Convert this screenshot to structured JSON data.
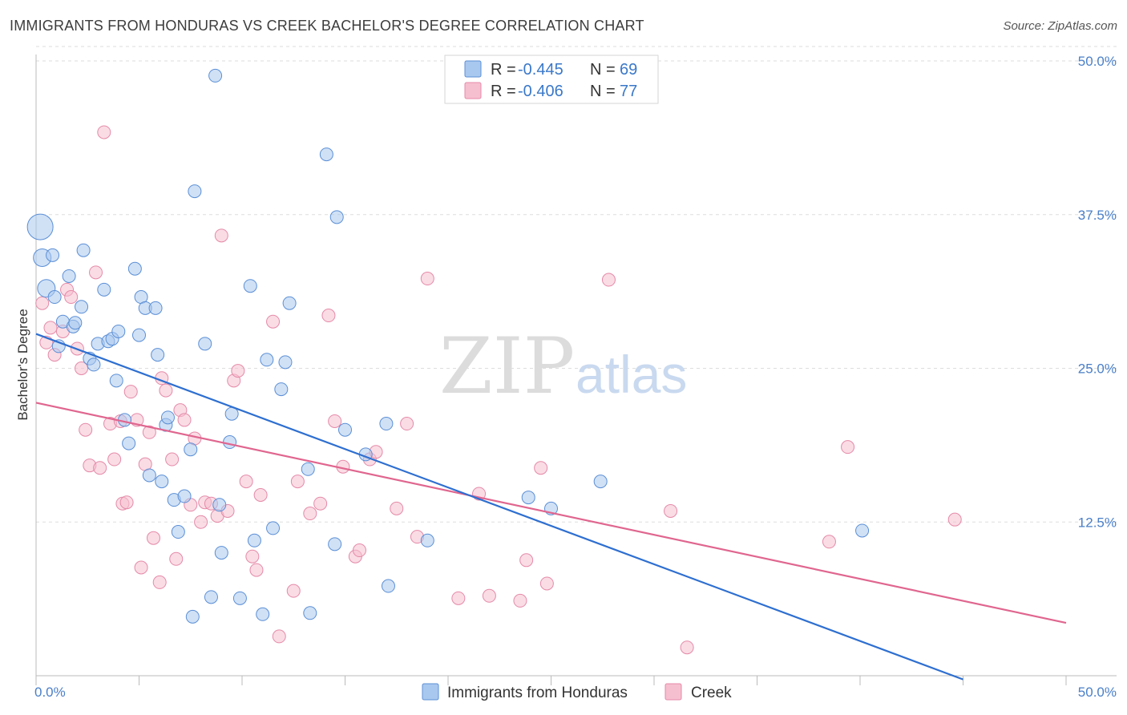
{
  "header": {
    "title": "IMMIGRANTS FROM HONDURAS VS CREEK BACHELOR'S DEGREE CORRELATION CHART",
    "source": "Source: ZipAtlas.com"
  },
  "watermark": {
    "zip": "ZIP",
    "atlas": "atlas"
  },
  "colors": {
    "blue_fill": "#a9c8ef",
    "blue_stroke": "#5b8fd6",
    "blue_line": "#2e6fd0",
    "pink_fill": "#f6bfd0",
    "pink_stroke": "#e58aa8",
    "pink_line": "#e0668f",
    "tick_text": "#4a7fc8",
    "grid": "#dddddd"
  },
  "legend": {
    "rows": [
      {
        "r_label": "R = ",
        "r_value": "-0.445",
        "n_label": "N = ",
        "n_value": "69"
      },
      {
        "r_label": "R = ",
        "r_value": "-0.406",
        "n_label": "N = ",
        "n_value": "77"
      }
    ]
  },
  "chart_data": {
    "type": "scatter",
    "title": "IMMIGRANTS FROM HONDURAS VS CREEK BACHELOR'S DEGREE CORRELATION CHART",
    "xlabel": "",
    "ylabel": "Bachelor's Degree",
    "xlim": [
      0,
      50
    ],
    "ylim": [
      0,
      50
    ],
    "x_tick_labels": [
      "0.0%",
      "50.0%"
    ],
    "y_ticks": [
      12.5,
      25.0,
      37.5,
      50.0
    ],
    "y_tick_labels": [
      "12.5%",
      "25.0%",
      "37.5%",
      "50.0%"
    ],
    "grid": "horizontal dashed",
    "legend_placement": "top-center",
    "series": [
      {
        "name": "Immigrants from Honduras",
        "color": "#a9c8ef",
        "trend": {
          "x": [
            0,
            45
          ],
          "y": [
            27.8,
            -0.3
          ]
        },
        "points": [
          [
            0.2,
            36.5,
            3
          ],
          [
            0.3,
            34.0,
            2
          ],
          [
            0.5,
            31.5,
            2
          ],
          [
            0.8,
            34.2,
            1
          ],
          [
            0.9,
            30.8,
            1
          ],
          [
            1.1,
            26.8,
            1
          ],
          [
            1.3,
            28.8,
            1
          ],
          [
            1.6,
            32.5,
            1
          ],
          [
            1.8,
            28.4,
            1
          ],
          [
            1.9,
            28.7,
            1
          ],
          [
            2.2,
            30.0,
            1
          ],
          [
            2.3,
            34.6,
            1
          ],
          [
            2.6,
            25.8,
            1
          ],
          [
            2.8,
            25.3,
            1
          ],
          [
            3.0,
            27.0,
            1
          ],
          [
            3.3,
            31.4,
            1
          ],
          [
            3.5,
            27.2,
            1
          ],
          [
            3.7,
            27.4,
            1
          ],
          [
            3.9,
            24.0,
            1
          ],
          [
            4.0,
            28.0,
            1
          ],
          [
            4.3,
            20.8,
            1
          ],
          [
            4.5,
            18.9,
            1
          ],
          [
            4.8,
            33.1,
            1
          ],
          [
            5.0,
            27.7,
            1
          ],
          [
            5.1,
            30.8,
            1
          ],
          [
            5.3,
            29.9,
            1
          ],
          [
            5.5,
            16.3,
            1
          ],
          [
            5.8,
            29.9,
            1
          ],
          [
            5.9,
            26.1,
            1
          ],
          [
            6.1,
            15.8,
            1
          ],
          [
            6.3,
            20.4,
            1
          ],
          [
            6.4,
            21.0,
            1
          ],
          [
            6.7,
            14.3,
            1
          ],
          [
            6.9,
            11.7,
            1
          ],
          [
            7.2,
            14.6,
            1
          ],
          [
            7.5,
            18.4,
            1
          ],
          [
            7.6,
            4.8,
            1
          ],
          [
            7.7,
            39.4,
            1
          ],
          [
            8.2,
            27.0,
            1
          ],
          [
            8.5,
            6.4,
            1
          ],
          [
            8.7,
            48.8,
            1
          ],
          [
            8.9,
            13.9,
            1
          ],
          [
            9.0,
            10.0,
            1
          ],
          [
            9.4,
            19.0,
            1
          ],
          [
            9.5,
            21.3,
            1
          ],
          [
            9.9,
            6.3,
            1
          ],
          [
            10.4,
            31.7,
            1
          ],
          [
            10.6,
            11.0,
            1
          ],
          [
            11.0,
            5.0,
            1
          ],
          [
            11.2,
            25.7,
            1
          ],
          [
            11.5,
            12.0,
            1
          ],
          [
            11.9,
            23.3,
            1
          ],
          [
            12.1,
            25.5,
            1
          ],
          [
            12.3,
            30.3,
            1
          ],
          [
            13.2,
            16.8,
            1
          ],
          [
            13.3,
            5.1,
            1
          ],
          [
            14.1,
            42.4,
            1
          ],
          [
            14.5,
            10.7,
            1
          ],
          [
            14.6,
            37.3,
            1
          ],
          [
            15.0,
            20.0,
            1
          ],
          [
            16.0,
            18.0,
            1
          ],
          [
            17.0,
            20.5,
            1
          ],
          [
            17.1,
            7.3,
            1
          ],
          [
            19.0,
            11.0,
            1
          ],
          [
            23.9,
            14.5,
            1
          ],
          [
            25.0,
            13.6,
            1
          ],
          [
            27.4,
            15.8,
            1
          ],
          [
            40.1,
            11.8,
            1
          ]
        ]
      },
      {
        "name": "Creek",
        "color": "#f6bfd0",
        "trend": {
          "x": [
            0,
            50
          ],
          "y": [
            22.2,
            4.3
          ]
        },
        "points": [
          [
            0.3,
            30.3,
            1
          ],
          [
            0.5,
            27.1,
            1
          ],
          [
            0.7,
            28.3,
            1
          ],
          [
            0.9,
            26.1,
            1
          ],
          [
            1.3,
            28.0,
            1
          ],
          [
            1.5,
            31.4,
            1
          ],
          [
            1.7,
            30.8,
            1
          ],
          [
            2.0,
            26.6,
            1
          ],
          [
            2.2,
            25.0,
            1
          ],
          [
            2.4,
            20.0,
            1
          ],
          [
            2.6,
            17.1,
            1
          ],
          [
            2.9,
            32.8,
            1
          ],
          [
            3.1,
            16.9,
            1
          ],
          [
            3.3,
            44.2,
            1
          ],
          [
            3.6,
            20.5,
            1
          ],
          [
            3.8,
            17.6,
            1
          ],
          [
            4.1,
            20.7,
            1
          ],
          [
            4.2,
            14.0,
            1
          ],
          [
            4.4,
            14.1,
            1
          ],
          [
            4.6,
            23.1,
            1
          ],
          [
            4.9,
            20.8,
            1
          ],
          [
            5.1,
            8.8,
            1
          ],
          [
            5.3,
            17.2,
            1
          ],
          [
            5.5,
            19.8,
            1
          ],
          [
            5.7,
            11.2,
            1
          ],
          [
            6.0,
            7.6,
            1
          ],
          [
            6.1,
            24.2,
            1
          ],
          [
            6.3,
            23.2,
            1
          ],
          [
            6.6,
            17.6,
            1
          ],
          [
            6.8,
            9.5,
            1
          ],
          [
            7.0,
            21.6,
            1
          ],
          [
            7.2,
            20.8,
            1
          ],
          [
            7.5,
            13.9,
            1
          ],
          [
            7.7,
            19.3,
            1
          ],
          [
            8.0,
            12.5,
            1
          ],
          [
            8.2,
            14.1,
            1
          ],
          [
            8.5,
            14.0,
            1
          ],
          [
            8.8,
            13.0,
            1
          ],
          [
            9.0,
            35.8,
            1
          ],
          [
            9.3,
            13.4,
            1
          ],
          [
            9.6,
            24.0,
            1
          ],
          [
            9.8,
            24.8,
            1
          ],
          [
            10.2,
            15.8,
            1
          ],
          [
            10.5,
            9.7,
            1
          ],
          [
            10.7,
            8.6,
            1
          ],
          [
            10.9,
            14.7,
            1
          ],
          [
            11.5,
            28.8,
            1
          ],
          [
            11.8,
            3.2,
            1
          ],
          [
            12.5,
            6.9,
            1
          ],
          [
            12.7,
            15.8,
            1
          ],
          [
            13.3,
            13.2,
            1
          ],
          [
            13.8,
            14.0,
            1
          ],
          [
            14.2,
            29.3,
            1
          ],
          [
            14.5,
            20.7,
            1
          ],
          [
            14.9,
            17.0,
            1
          ],
          [
            15.5,
            9.7,
            1
          ],
          [
            15.7,
            10.2,
            1
          ],
          [
            16.2,
            17.6,
            1
          ],
          [
            16.5,
            18.2,
            1
          ],
          [
            17.5,
            13.6,
            1
          ],
          [
            18.0,
            20.5,
            1
          ],
          [
            18.5,
            11.3,
            1
          ],
          [
            19.0,
            32.3,
            1
          ],
          [
            20.5,
            6.3,
            1
          ],
          [
            21.5,
            14.8,
            1
          ],
          [
            22.0,
            6.5,
            1
          ],
          [
            23.5,
            6.1,
            1
          ],
          [
            23.8,
            9.4,
            1
          ],
          [
            24.5,
            16.9,
            1
          ],
          [
            24.8,
            7.5,
            1
          ],
          [
            27.8,
            32.2,
            1
          ],
          [
            30.8,
            13.4,
            1
          ],
          [
            31.6,
            2.3,
            1
          ],
          [
            38.5,
            10.9,
            1
          ],
          [
            39.4,
            18.6,
            1
          ],
          [
            44.6,
            12.7,
            1
          ]
        ]
      }
    ]
  },
  "bottom_legend": [
    {
      "label": "Immigrants from Honduras"
    },
    {
      "label": "Creek"
    }
  ]
}
